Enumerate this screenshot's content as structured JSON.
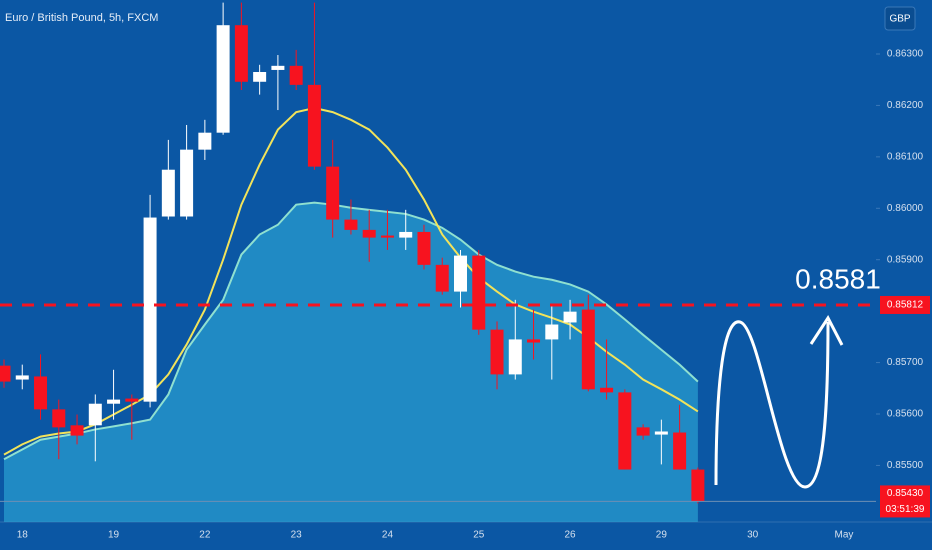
{
  "chart_data": {
    "type": "candlestick",
    "title": "Euro / British Pound, 5h, FXCM",
    "currency": "GBP",
    "categories": [
      null,
      "18",
      null,
      null,
      null,
      null,
      "19",
      null,
      null,
      null,
      null,
      "22",
      null,
      null,
      null,
      null,
      "23",
      null,
      null,
      null,
      null,
      "24",
      null,
      null,
      null,
      null,
      "25",
      null,
      null,
      null,
      null,
      "26",
      null,
      null,
      null,
      null,
      "29",
      null,
      null,
      null,
      null,
      "30",
      null,
      null,
      null,
      null,
      "May",
      null
    ],
    "open": [
      0.85694,
      0.85667,
      0.85673,
      0.85609,
      0.85578,
      0.85578,
      0.8562,
      0.8563,
      0.85624,
      0.85984,
      0.85984,
      0.86114,
      0.86147,
      0.86356,
      0.86246,
      0.86269,
      0.86277,
      0.8624,
      0.86081,
      0.85978,
      0.85958,
      0.85947,
      0.85943,
      0.85954,
      0.8589,
      0.85838,
      0.85908,
      0.85764,
      0.85677,
      0.85745,
      0.85745,
      0.85778,
      0.85803,
      0.85651,
      0.85642,
      0.85574,
      0.8556,
      0.85564,
      0.85492,
      null,
      null,
      null,
      null,
      null,
      null,
      null,
      null,
      null
    ],
    "high": [
      0.85706,
      0.85696,
      0.85716,
      0.85628,
      0.85599,
      0.85638,
      0.85686,
      0.85638,
      0.86026,
      0.86133,
      0.86162,
      0.86172,
      0.864,
      0.864,
      0.86279,
      0.86298,
      0.86308,
      0.864,
      0.86133,
      0.86017,
      0.85997,
      0.85997,
      0.85997,
      0.85968,
      0.85904,
      0.85919,
      0.85919,
      0.8578,
      0.85822,
      0.85803,
      0.85813,
      0.85822,
      0.85832,
      0.85745,
      0.85648,
      0.8558,
      0.85589,
      0.85618,
      0.85496,
      null,
      null,
      null,
      null,
      null,
      null,
      null,
      null,
      null
    ],
    "low": [
      0.85651,
      0.85648,
      0.85589,
      0.85512,
      0.85541,
      0.85508,
      0.85589,
      0.8555,
      0.85613,
      0.85978,
      0.85978,
      0.86094,
      0.86143,
      0.8623,
      0.86221,
      0.86191,
      0.8623,
      0.86075,
      0.85943,
      0.85949,
      0.85896,
      0.85919,
      0.85919,
      0.85881,
      0.85832,
      0.85807,
      0.85754,
      0.85648,
      0.85667,
      0.85706,
      0.85667,
      0.85745,
      0.85644,
      0.85628,
      0.85492,
      0.8555,
      0.85502,
      0.85492,
      0.85426,
      null,
      null,
      null,
      null,
      null,
      null,
      null,
      null,
      null
    ],
    "close": [
      0.85663,
      0.85675,
      0.85609,
      0.85574,
      0.85558,
      0.8562,
      0.85628,
      0.85624,
      0.85982,
      0.86075,
      0.86114,
      0.86147,
      0.86356,
      0.86246,
      0.86265,
      0.86277,
      0.8624,
      0.86081,
      0.85978,
      0.85958,
      0.85943,
      0.85943,
      0.85954,
      0.8589,
      0.85838,
      0.85908,
      0.85764,
      0.85677,
      0.85745,
      0.85739,
      0.85774,
      0.85799,
      0.85648,
      0.85642,
      0.85492,
      0.85558,
      0.85566,
      0.85492,
      0.8543,
      null,
      null,
      null,
      null,
      null,
      null,
      null,
      null,
      null
    ],
    "up_color": "#ffffff",
    "down_color": "#f7131f",
    "moving_average": {
      "color": "#f2e35a",
      "values": [
        0.85521,
        0.85541,
        0.85556,
        0.85562,
        0.85566,
        0.8558,
        0.85599,
        0.85618,
        0.85638,
        0.85677,
        0.85735,
        0.85803,
        0.859,
        0.86007,
        0.86085,
        0.86153,
        0.86187,
        0.86195,
        0.86187,
        0.86172,
        0.86153,
        0.86118,
        0.86075,
        0.86017,
        0.85949,
        0.85904,
        0.85865,
        0.85838,
        0.85813,
        0.85799,
        0.85787,
        0.85774,
        0.85749,
        0.85721,
        0.85696,
        0.85667,
        0.85648,
        0.85628,
        0.85605,
        null,
        null,
        null,
        null,
        null,
        null,
        null,
        null,
        null
      ]
    },
    "band": {
      "color": "#2a9fd2",
      "values": [
        0.85512,
        0.85531,
        0.8555,
        0.85556,
        0.85562,
        0.8557,
        0.85576,
        0.85582,
        0.85589,
        0.85638,
        0.85725,
        0.85774,
        0.85822,
        0.8591,
        0.85949,
        0.85968,
        0.86007,
        0.86011,
        0.86007,
        0.86001,
        0.85997,
        0.85993,
        0.85989,
        0.85978,
        0.85962,
        0.85939,
        0.8591,
        0.8589,
        0.85877,
        0.85867,
        0.85861,
        0.85852,
        0.85838,
        0.85813,
        0.85784,
        0.85754,
        0.85725,
        0.85696,
        0.85663,
        null,
        null,
        null,
        null,
        null,
        null,
        null,
        null,
        null
      ]
    },
    "price_line": {
      "value": 0.85812,
      "label": "0.85812",
      "color": "#f7131f"
    },
    "last_price": {
      "value": 0.8543,
      "label": "0.85430",
      "color": "#f7131f"
    },
    "countdown": "03:51:39",
    "annotation": "0.8581",
    "ylim": [
      0.8539,
      0.86405
    ],
    "yticks": [
      {
        "value": 0.863,
        "label": "0.86300"
      },
      {
        "value": 0.862,
        "label": "0.86200"
      },
      {
        "value": 0.861,
        "label": "0.86100"
      },
      {
        "value": 0.86,
        "label": "0.86000"
      },
      {
        "value": 0.859,
        "label": "0.85900"
      },
      {
        "value": 0.857,
        "label": "0.85700"
      },
      {
        "value": 0.856,
        "label": "0.85600"
      },
      {
        "value": 0.855,
        "label": "0.85500"
      }
    ]
  }
}
